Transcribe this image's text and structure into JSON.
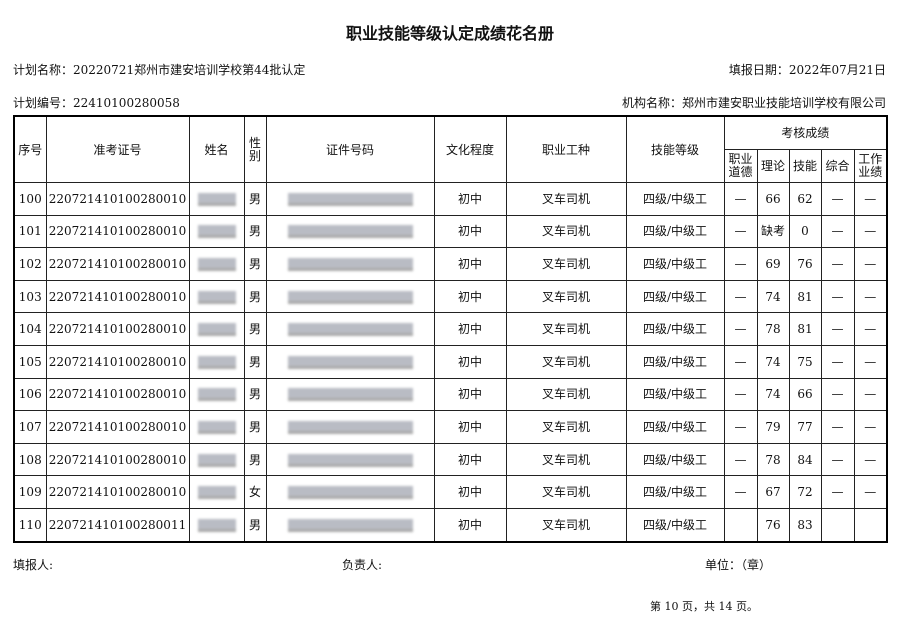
{
  "title": "职业技能等级认定成绩花名册",
  "plan_name": "计划名称：20220721郑州市建安培训学校第44批认定",
  "fill_date": "填报日期：2022年07月21日",
  "plan_no": "计划编号：22410100280058",
  "org": "机构名称：郑州市建安职业技能培训学校有限公司",
  "headers": {
    "seq": "序号",
    "ticket": "准考证号",
    "name": "姓名",
    "gender": "性别",
    "id": "证件号码",
    "edu": "文化程度",
    "job": "职业工种",
    "level": "技能等级",
    "scores": "考核成绩",
    "ethics": "职业道德",
    "theory": "理论",
    "skill": "技能",
    "overall": "综合",
    "work": "工作业绩"
  },
  "rows": [
    {
      "seq": "100",
      "ticket": "220721410100280010",
      "gender": "男",
      "edu": "初中",
      "job": "叉车司机",
      "level": "四级/中级工",
      "ethics": "—",
      "theory": "66",
      "skill": "62",
      "overall": "—",
      "work": "—"
    },
    {
      "seq": "101",
      "ticket": "220721410100280010",
      "gender": "男",
      "edu": "初中",
      "job": "叉车司机",
      "level": "四级/中级工",
      "ethics": "—",
      "theory": "缺考",
      "skill": "0",
      "overall": "—",
      "work": "—"
    },
    {
      "seq": "102",
      "ticket": "220721410100280010",
      "gender": "男",
      "edu": "初中",
      "job": "叉车司机",
      "level": "四级/中级工",
      "ethics": "—",
      "theory": "69",
      "skill": "76",
      "overall": "—",
      "work": "—"
    },
    {
      "seq": "103",
      "ticket": "220721410100280010",
      "gender": "男",
      "edu": "初中",
      "job": "叉车司机",
      "level": "四级/中级工",
      "ethics": "—",
      "theory": "74",
      "skill": "81",
      "overall": "—",
      "work": "—"
    },
    {
      "seq": "104",
      "ticket": "220721410100280010",
      "gender": "男",
      "edu": "初中",
      "job": "叉车司机",
      "level": "四级/中级工",
      "ethics": "—",
      "theory": "78",
      "skill": "81",
      "overall": "—",
      "work": "—"
    },
    {
      "seq": "105",
      "ticket": "220721410100280010",
      "gender": "男",
      "edu": "初中",
      "job": "叉车司机",
      "level": "四级/中级工",
      "ethics": "—",
      "theory": "74",
      "skill": "75",
      "overall": "—",
      "work": "—"
    },
    {
      "seq": "106",
      "ticket": "220721410100280010",
      "gender": "男",
      "edu": "初中",
      "job": "叉车司机",
      "level": "四级/中级工",
      "ethics": "—",
      "theory": "74",
      "skill": "66",
      "overall": "—",
      "work": "—"
    },
    {
      "seq": "107",
      "ticket": "220721410100280010",
      "gender": "男",
      "edu": "初中",
      "job": "叉车司机",
      "level": "四级/中级工",
      "ethics": "—",
      "theory": "79",
      "skill": "77",
      "overall": "—",
      "work": "—"
    },
    {
      "seq": "108",
      "ticket": "220721410100280010",
      "gender": "男",
      "edu": "初中",
      "job": "叉车司机",
      "level": "四级/中级工",
      "ethics": "—",
      "theory": "78",
      "skill": "84",
      "overall": "—",
      "work": "—"
    },
    {
      "seq": "109",
      "ticket": "220721410100280010",
      "gender": "女",
      "edu": "初中",
      "job": "叉车司机",
      "level": "四级/中级工",
      "ethics": "—",
      "theory": "67",
      "skill": "72",
      "overall": "—",
      "work": "—"
    },
    {
      "seq": "110",
      "ticket": "220721410100280011",
      "gender": "男",
      "edu": "初中",
      "job": "叉车司机",
      "level": "四级/中级工",
      "ethics": "",
      "theory": "76",
      "skill": "83",
      "overall": "",
      "work": ""
    }
  ],
  "footer": {
    "filler": "填报人:",
    "responsible": "负责人:",
    "unit": "单位：（章）",
    "page": "第 10 页，共 14 页。"
  }
}
